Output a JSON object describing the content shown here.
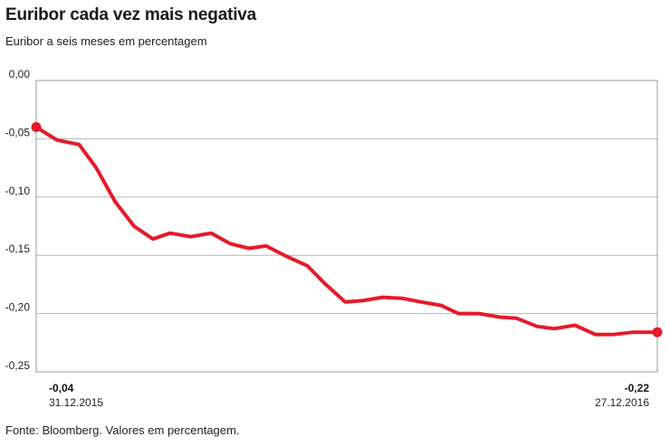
{
  "header": {
    "title": "Euribor cada vez mais negativa",
    "subtitle": "Euribor a seis meses em percentagem"
  },
  "footer": {
    "source": "Fonte: Bloomberg. Valores em percentagem."
  },
  "colors": {
    "line": "#e31b2b"
  },
  "chart_data": {
    "type": "line",
    "title": "Euribor cada vez mais negativa",
    "subtitle": "Euribor a seis meses em percentagem",
    "xlabel": "",
    "ylabel": "",
    "ylim": [
      -0.25,
      0.0
    ],
    "yticks": [
      "0,00",
      "-0,05",
      "-0,10",
      "-0,15",
      "-0,20",
      "-0,25"
    ],
    "ytick_values": [
      0.0,
      -0.05,
      -0.1,
      -0.15,
      -0.2,
      -0.25
    ],
    "grid": true,
    "start": {
      "date": "31.12.2015",
      "label": "-0,04",
      "value": -0.04
    },
    "end": {
      "date": "27.12.2016",
      "label": "-0,22",
      "value": -0.216
    },
    "series": [
      {
        "x": [
          "2015-12-31",
          "2016-01-12",
          "2016-01-25",
          "2016-02-04",
          "2016-02-15",
          "2016-02-26",
          "2016-03-08",
          "2016-03-18",
          "2016-03-30",
          "2016-04-11",
          "2016-04-22",
          "2016-05-03",
          "2016-05-13",
          "2016-05-25",
          "2016-06-06",
          "2016-06-16",
          "2016-06-28",
          "2016-07-08",
          "2016-07-20",
          "2016-08-01",
          "2016-08-11",
          "2016-08-23",
          "2016-09-02",
          "2016-09-14",
          "2016-09-26",
          "2016-10-06",
          "2016-10-18",
          "2016-10-28",
          "2016-11-09",
          "2016-11-21",
          "2016-12-01",
          "2016-12-13",
          "2016-12-27"
        ],
        "values": [
          -0.04,
          -0.051,
          -0.055,
          -0.075,
          -0.104,
          -0.125,
          -0.136,
          -0.131,
          -0.134,
          -0.131,
          -0.14,
          -0.144,
          -0.142,
          -0.151,
          -0.159,
          -0.174,
          -0.19,
          -0.189,
          -0.186,
          -0.187,
          -0.19,
          -0.193,
          -0.2,
          -0.2,
          -0.203,
          -0.204,
          -0.211,
          -0.213,
          -0.21,
          -0.218,
          -0.218,
          -0.216,
          -0.216
        ]
      }
    ]
  }
}
